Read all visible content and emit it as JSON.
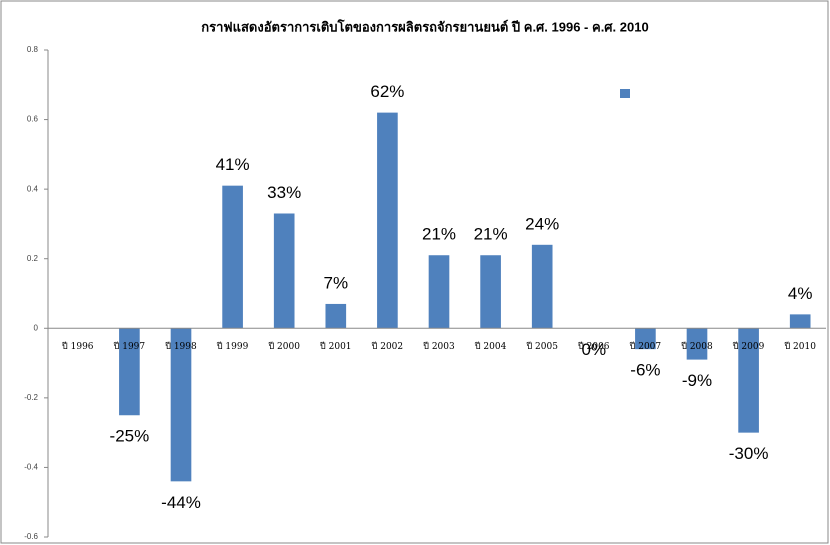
{
  "chart_data": {
    "type": "bar",
    "title": "กราฟแสดงอัตราการเติบโตของการผลิตรถจักรยานยนต์ ปี ค.ศ. 1996 - ค.ศ. 2010",
    "categories": [
      "ปี 1996",
      "ปี 1997",
      "ปี 1998",
      "ปี 1999",
      "ปี 2000",
      "ปี 2001",
      "ปี 2002",
      "ปี 2003",
      "ปี 2004",
      "ปี 2005",
      "ปี 2006",
      "ปี 2007",
      "ปี 2008",
      "ปี 2009",
      "ปี 2010"
    ],
    "values": [
      null,
      -0.25,
      -0.44,
      0.41,
      0.33,
      0.07,
      0.62,
      0.21,
      0.21,
      0.24,
      0,
      -0.06,
      -0.09,
      -0.3,
      0.04
    ],
    "value_labels": [
      null,
      "-25%",
      "-44%",
      "41%",
      "33%",
      "7%",
      "62%",
      "21%",
      "21%",
      "24%",
      "0%",
      "-6%",
      "-9%",
      "-30%",
      "4%"
    ],
    "color": "#4f81bd",
    "ylim": [
      -0.6,
      0.8
    ],
    "yticks": [
      -0.6,
      -0.4,
      -0.2,
      0,
      0.2,
      0.4,
      0.6,
      0.8
    ],
    "grid": false
  }
}
